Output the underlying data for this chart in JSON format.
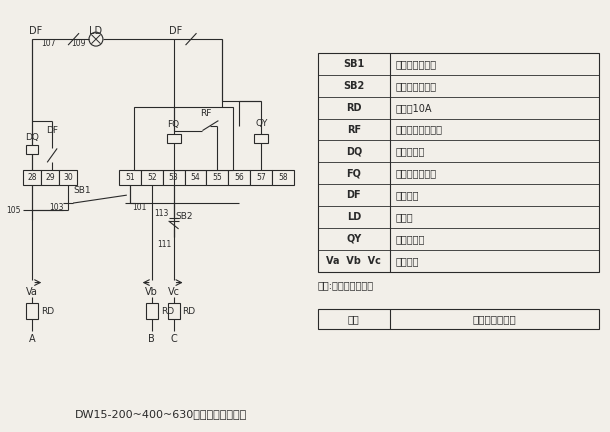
{
  "bg_color": "#f2efe9",
  "line_color": "#2a2a2a",
  "title": "DW15-200~400~630万能断路器接线图",
  "table_data": [
    [
      "SB1",
      "启动按鈕（绻）"
    ],
    [
      "SB2",
      "停止按鈕（红）"
    ],
    [
      "RD",
      "燕断全10A"
    ],
    [
      "RF",
      "热继电器常开触头"
    ],
    [
      "DQ",
      "电磁锁线圈"
    ],
    [
      "FQ",
      "分离脱扣器线圈"
    ],
    [
      "DF",
      "辅助出头"
    ],
    [
      "LD",
      "指示灯"
    ],
    [
      "QY",
      "欠压脱扣圈"
    ],
    [
      "Va  Vb  Vc",
      "去电能表"
    ]
  ],
  "note": "说明:彩线为用户配线",
  "footer_left": "制图",
  "footer_right": "军哥制作组制图",
  "term_left": [
    "28",
    "29",
    "30"
  ],
  "term_right": [
    "51",
    "52",
    "53",
    "54",
    "55",
    "56",
    "57",
    "58"
  ]
}
